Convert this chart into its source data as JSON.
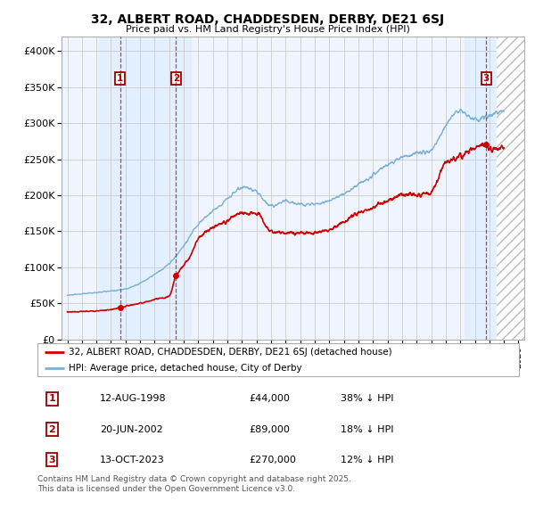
{
  "title": "32, ALBERT ROAD, CHADDESDEN, DERBY, DE21 6SJ",
  "subtitle": "Price paid vs. HM Land Registry's House Price Index (HPI)",
  "ylim": [
    0,
    420000
  ],
  "yticks": [
    0,
    50000,
    100000,
    150000,
    200000,
    250000,
    300000,
    350000,
    400000
  ],
  "ytick_labels": [
    "£0",
    "£50K",
    "£100K",
    "£150K",
    "£200K",
    "£250K",
    "£300K",
    "£350K",
    "£400K"
  ],
  "xlim_start": 1994.6,
  "xlim_end": 2026.4,
  "sales": [
    {
      "num": 1,
      "year": 1998.617,
      "price": 44000,
      "date": "12-AUG-1998",
      "pct": "38% ↓ HPI"
    },
    {
      "num": 2,
      "year": 2002.472,
      "price": 89000,
      "date": "20-JUN-2002",
      "pct": "18% ↓ HPI"
    },
    {
      "num": 3,
      "year": 2023.786,
      "price": 270000,
      "date": "13-OCT-2023",
      "pct": "12% ↓ HPI"
    }
  ],
  "line_price_color": "#cc0000",
  "line_hpi_color": "#7ab0d4",
  "grid_color": "#cccccc",
  "shade_color_blue": "#ddeeff",
  "shade_color_pink": "#f0e8f0",
  "legend_label_price": "32, ALBERT ROAD, CHADDESDEN, DERBY, DE21 6SJ (detached house)",
  "legend_label_hpi": "HPI: Average price, detached house, City of Derby",
  "footnote": "Contains HM Land Registry data © Crown copyright and database right 2025.\nThis data is licensed under the Open Government Licence v3.0.",
  "bg_color": "#f0f4ff",
  "hpi_keypoints_years": [
    1995,
    1996,
    1997,
    1998,
    1999,
    2000,
    2001,
    2002,
    2003,
    2004,
    2005,
    2006,
    2007,
    2008,
    2009,
    2010,
    2011,
    2012,
    2013,
    2014,
    2015,
    2016,
    2017,
    2018,
    2019,
    2020,
    2021,
    2022,
    2023,
    2024,
    2025
  ],
  "hpi_keypoints_vals": [
    61000,
    63000,
    65000,
    67000,
    70000,
    78000,
    90000,
    105000,
    130000,
    160000,
    178000,
    195000,
    210000,
    205000,
    185000,
    192000,
    188000,
    188000,
    193000,
    202000,
    215000,
    228000,
    242000,
    252000,
    258000,
    262000,
    298000,
    318000,
    305000,
    310000,
    318000
  ],
  "price_keypoints_years": [
    1995,
    1996,
    1997,
    1998.0,
    1998.617,
    1999.0,
    2000,
    2001,
    2002.0,
    2002.472,
    2002.9,
    2003.5,
    2004,
    2005,
    2006,
    2007,
    2008,
    2009,
    2010,
    2011,
    2012,
    2013,
    2014,
    2015,
    2016,
    2017,
    2018,
    2019,
    2020,
    2021,
    2022,
    2023.786,
    2024.0,
    2025
  ],
  "price_keypoints_vals": [
    38000,
    38500,
    39500,
    41000,
    44000,
    46000,
    50000,
    55000,
    60000,
    89000,
    100000,
    118000,
    140000,
    155000,
    165000,
    175000,
    175000,
    150000,
    148000,
    148000,
    148000,
    152000,
    163000,
    175000,
    183000,
    193000,
    200000,
    200000,
    205000,
    245000,
    255000,
    270000,
    265000,
    268000
  ]
}
